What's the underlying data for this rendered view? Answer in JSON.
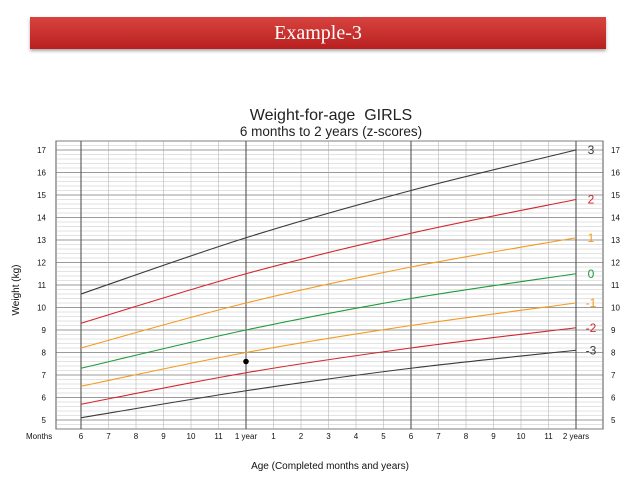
{
  "slide": {
    "title": "Example-3",
    "accent_color": "#c62c2a"
  },
  "chart_data": {
    "type": "line",
    "title": "Weight-for-age  GIRLS",
    "subtitle": "6 months to 2 years (z-scores)",
    "ylabel": "Weight (kg)",
    "xlabel": "Age (Completed months and years)",
    "x_row_label": "Months",
    "x_tick_labels": [
      "6",
      "7",
      "8",
      "9",
      "10",
      "11",
      "1 year",
      "1",
      "2",
      "3",
      "4",
      "5",
      "6",
      "7",
      "8",
      "9",
      "10",
      "11",
      "2 years"
    ],
    "ylim": [
      4.6,
      17.4
    ],
    "y_ticks": [
      5,
      6,
      7,
      8,
      9,
      10,
      11,
      12,
      13,
      14,
      15,
      16,
      17
    ],
    "x_range_months": [
      6,
      24
    ],
    "grid": true,
    "x": [
      6,
      12,
      18,
      24
    ],
    "series": [
      {
        "name": "3",
        "color": "#3a3a3a",
        "values": [
          10.6,
          13.1,
          15.2,
          17.0
        ]
      },
      {
        "name": "2",
        "color": "#d2262b",
        "values": [
          9.3,
          11.5,
          13.3,
          14.8
        ]
      },
      {
        "name": "1",
        "color": "#f39a1e",
        "values": [
          8.2,
          10.2,
          11.8,
          13.1
        ]
      },
      {
        "name": "0",
        "color": "#1f9a3a",
        "values": [
          7.3,
          9.0,
          10.4,
          11.5
        ]
      },
      {
        "name": "-1",
        "color": "#f39a1e",
        "values": [
          6.5,
          8.0,
          9.2,
          10.2
        ]
      },
      {
        "name": "-2",
        "color": "#d2262b",
        "values": [
          5.7,
          7.1,
          8.2,
          9.1
        ]
      },
      {
        "name": "-3",
        "color": "#3a3a3a",
        "values": [
          5.1,
          6.3,
          7.3,
          8.1
        ]
      }
    ],
    "points": [
      {
        "x": 12,
        "y": 7.6
      }
    ]
  }
}
